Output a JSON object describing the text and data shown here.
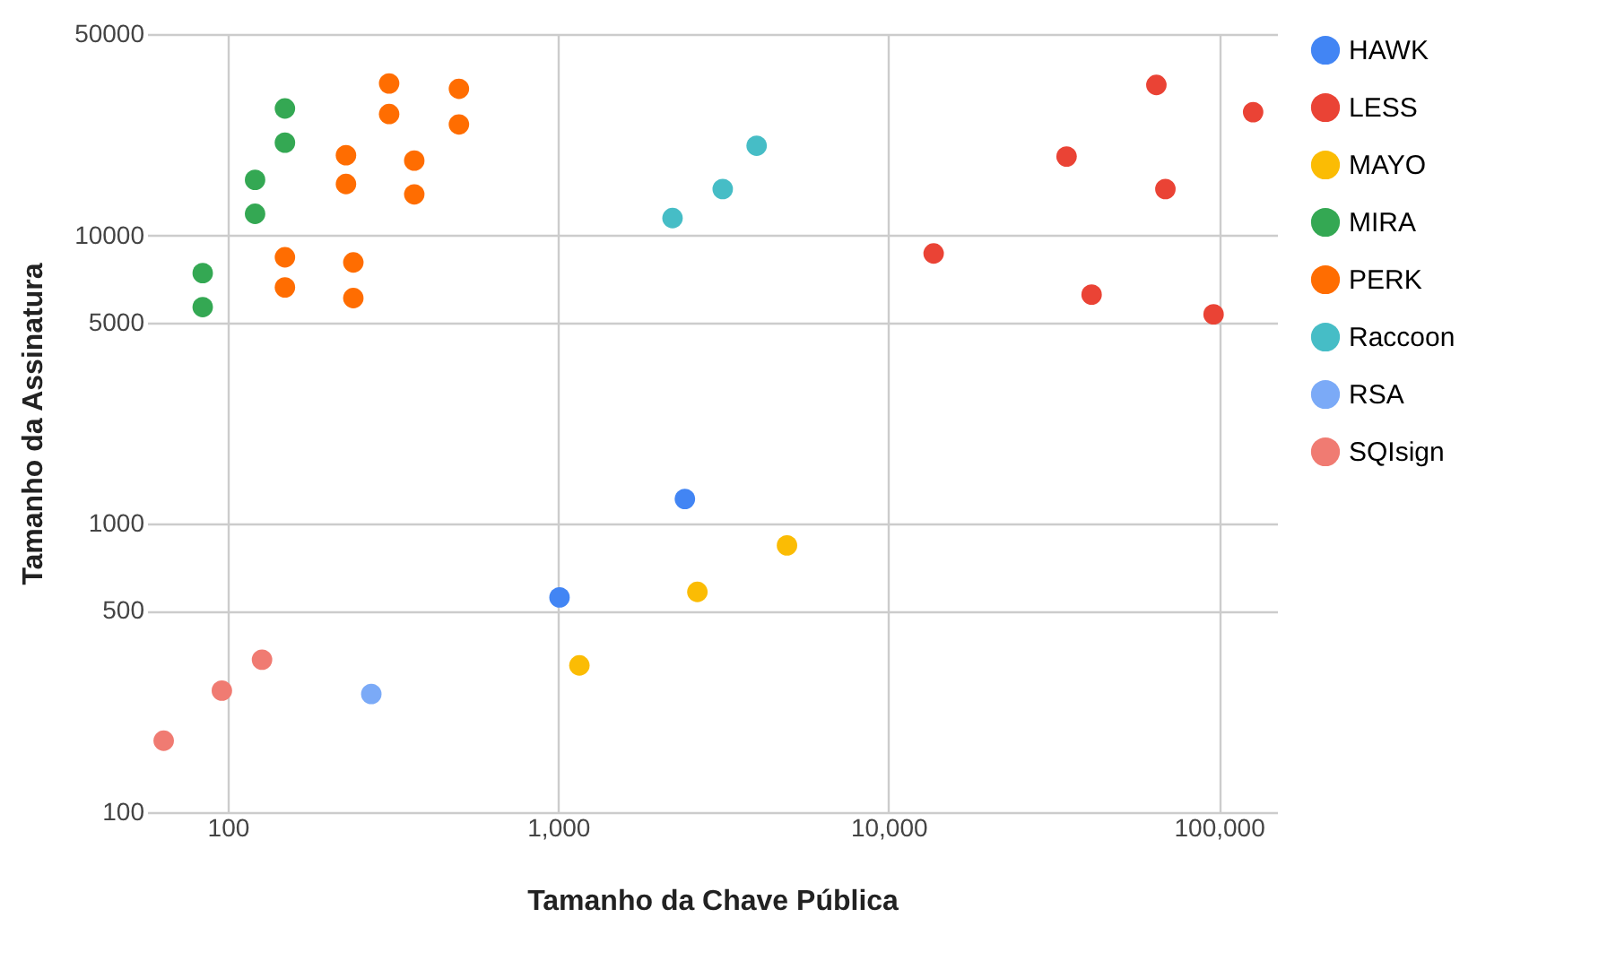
{
  "chart_data": {
    "type": "scatter",
    "xlabel": "Tamanho da Chave Pública",
    "ylabel": "Tamanho da Assinatura",
    "log": "xy",
    "grid": true,
    "legend": "right",
    "marker": "circle",
    "xlim": [
      57,
      150000
    ],
    "ylim": [
      100,
      50000
    ],
    "xticks": [
      100,
      {
        "value": 1000,
        "label": "1,000"
      },
      {
        "value": 10000,
        "label": "10,000"
      },
      {
        "value": 100000,
        "label": "100,000"
      }
    ],
    "yticks": [
      100,
      500,
      1000,
      5000,
      10000,
      50000
    ],
    "series": [
      {
        "name": "HAWK",
        "color": "#4285f4",
        "x": [
          1010,
          2420
        ],
        "values": [
          556,
          1220
        ]
      },
      {
        "name": "LESS",
        "color": "#ea4335",
        "x": [
          13700,
          34600,
          64700,
          127000,
          68900,
          41200,
          96400
        ],
        "values": [
          8670,
          18800,
          33300,
          26800,
          14500,
          6240,
          5330
        ]
      },
      {
        "name": "MAYO",
        "color": "#fbbc04",
        "x": [
          1160,
          2640,
          4930
        ],
        "values": [
          323,
          581,
          842
        ]
      },
      {
        "name": "MIRA",
        "color": "#34a853",
        "x": [
          84,
          84,
          121,
          121,
          149,
          149
        ],
        "values": [
          7410,
          5650,
          15600,
          11900,
          27600,
          21000
        ]
      },
      {
        "name": "PERK",
        "color": "#ff6d01",
        "x": [
          308,
          501,
          308,
          501,
          228,
          367,
          228,
          367,
          149,
          240,
          149,
          240
        ],
        "values": [
          33700,
          32300,
          26400,
          24300,
          19000,
          18200,
          15100,
          13900,
          8410,
          8070,
          6610,
          6070
        ]
      },
      {
        "name": "Raccoon",
        "color": "#46bdc6",
        "x": [
          2220,
          3150,
          3990
        ],
        "values": [
          11500,
          14500,
          20500
        ]
      },
      {
        "name": "RSA",
        "color": "#7baaf7",
        "x": [
          272
        ],
        "values": [
          257
        ]
      },
      {
        "name": "SQIsign",
        "color": "#f07b72",
        "x": [
          64,
          96,
          127
        ],
        "values": [
          177,
          264,
          338
        ]
      }
    ]
  }
}
